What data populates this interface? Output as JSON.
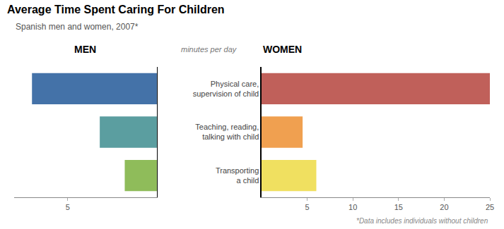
{
  "chart_data": [
    {
      "type": "bar",
      "orientation": "horizontal",
      "title": "Average Time Spent Caring For Children",
      "subtitle": "Spanish men and women, 2007*",
      "categories": [
        "Physical care,\nsupervision of child",
        "Teaching, reading,\ntalking with child",
        "Transporting\na child"
      ],
      "series": [
        {
          "name": "MEN",
          "colors": [
            "#4472A8",
            "#5B9EA0",
            "#8FBC5A"
          ],
          "values": [
            7.0,
            3.2,
            1.8
          ]
        }
      ],
      "xlim": [
        8,
        0
      ],
      "xticks": [
        5
      ],
      "annotations": [
        "minutes per day",
        "*Data includes individuals without children"
      ],
      "grid": false,
      "tick_labels": "x"
    },
    {
      "type": "bar",
      "orientation": "horizontal",
      "categories": [
        "Physical care,\nsupervision of child",
        "Teaching, reading,\ntalking with child",
        "Transporting\na child"
      ],
      "series": [
        {
          "name": "WOMEN",
          "colors": [
            "#C0605A",
            "#F0A050",
            "#F0E060"
          ],
          "values": [
            25.0,
            4.5,
            6.0
          ]
        }
      ],
      "xlim": [
        0,
        25
      ],
      "xticks": [
        5,
        10,
        15,
        20,
        25
      ],
      "grid": false
    }
  ]
}
